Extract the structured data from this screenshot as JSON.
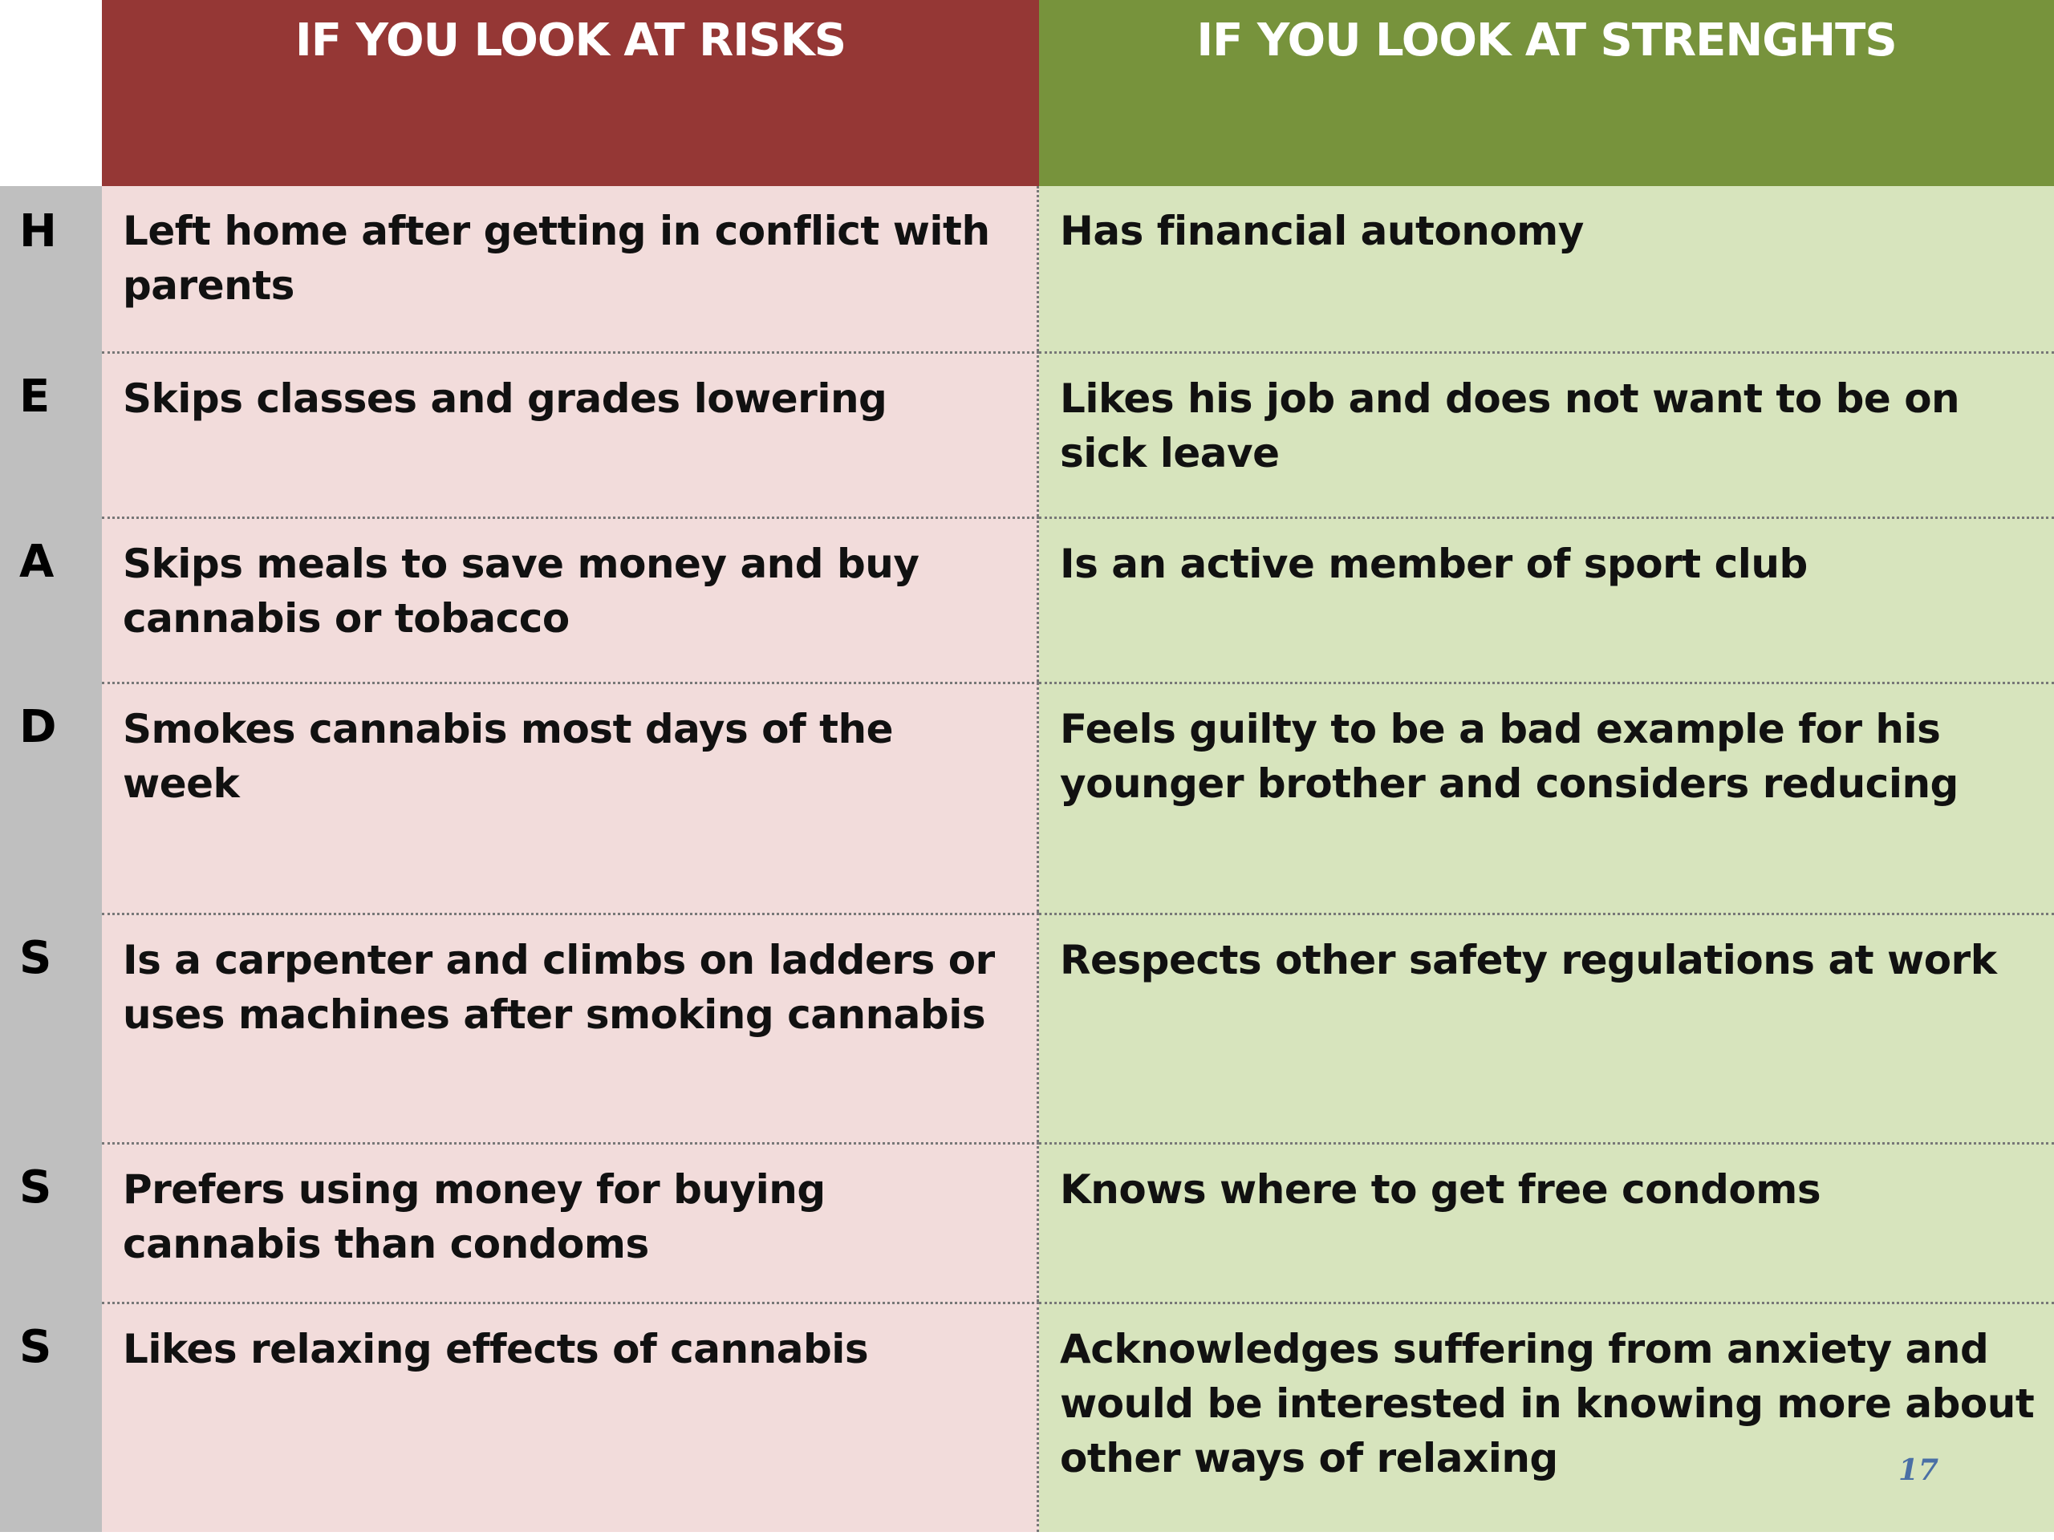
{
  "headers": {
    "risks": "IF YOU LOOK AT RISKS",
    "strengths": "IF YOU LOOK AT STRENGHTS"
  },
  "rows": [
    {
      "letter": "H",
      "risk": "Left home after getting in conflict with parents",
      "strength": "Has financial autonomy"
    },
    {
      "letter": "E",
      "risk": "Skips classes and grades lowering",
      "strength": "Likes his job and does not want to be on sick leave"
    },
    {
      "letter": "A",
      "risk": "Skips meals to save money and buy cannabis or tobacco",
      "strength": "Is an active member of sport club"
    },
    {
      "letter": "D",
      "risk": "Smokes cannabis most days of the week",
      "strength": "Feels guilty to be a bad example for his younger brother and considers reducing"
    },
    {
      "letter": "S",
      "risk": "Is a carpenter and climbs on ladders or uses machines after smoking cannabis",
      "strength": "Respects other safety regulations at work"
    },
    {
      "letter": "S",
      "risk": "Prefers using money for buying cannabis than condoms",
      "strength": "Knows where to get free condoms"
    },
    {
      "letter": "S",
      "risk": "Likes relaxing effects of cannabis",
      "strength": "Acknowledges suffering from anxiety and would be interested in knowing more about other ways of relaxing"
    }
  ],
  "page_number": "17",
  "colors": {
    "risk_header": "#953735",
    "strength_header": "#77933c",
    "risk_cell": "#f2dcdb",
    "strength_cell": "#d7e4bd",
    "letter_column": "#bfbfbf"
  }
}
